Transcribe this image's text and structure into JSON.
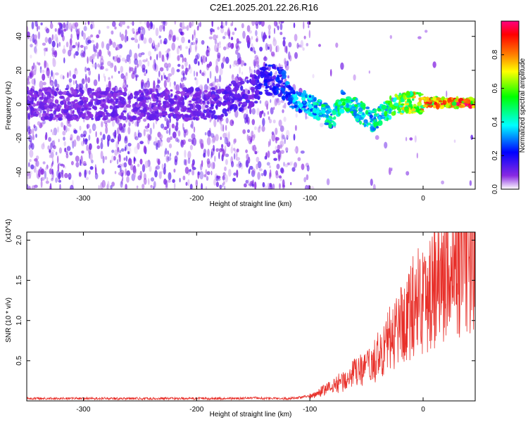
{
  "figure": {
    "title": "C2E1.2025.201.22.26.R16"
  },
  "chart_data": [
    {
      "type": "heatmap",
      "xlabel": "Height of straight line (km)",
      "ylabel": "Frequency (Hz)",
      "xlim": [
        -350,
        46
      ],
      "ylim": [
        -50,
        49
      ],
      "x_ticks": [
        "-300",
        "-200",
        "-100",
        "0"
      ],
      "x_tick_values": [
        -300,
        -200,
        -100,
        0
      ],
      "y_ticks": [
        "-40",
        "-20",
        "0",
        "20",
        "40"
      ],
      "y_tick_values": [
        -40,
        -20,
        0,
        20,
        40
      ],
      "colorbar": {
        "label": "Normalized spectral amplitude",
        "range": [
          0,
          1
        ],
        "ticks": [
          "0.0",
          "0.2",
          "0.4",
          "0.6",
          "0.8"
        ],
        "tick_values": [
          0,
          0.2,
          0.4,
          0.6,
          0.8
        ],
        "colors": [
          "#ffffff",
          "#8a2be2",
          "#0000ff",
          "#00ffff",
          "#00ff00",
          "#ffff00",
          "#ff8000",
          "#ff0000",
          "#ff0080"
        ]
      },
      "ridge": [
        {
          "x": -350,
          "freq": 0,
          "amp": 0.12
        },
        {
          "x": -300,
          "freq": 0,
          "amp": 0.12
        },
        {
          "x": -250,
          "freq": 0,
          "amp": 0.12
        },
        {
          "x": -200,
          "freq": 0,
          "amp": 0.13
        },
        {
          "x": -180,
          "freq": 1,
          "amp": 0.15
        },
        {
          "x": -150,
          "freq": 8,
          "amp": 0.15
        },
        {
          "x": -140,
          "freq": 15,
          "amp": 0.22
        },
        {
          "x": -125,
          "freq": 13,
          "amp": 0.25
        },
        {
          "x": -115,
          "freq": 3,
          "amp": 0.35
        },
        {
          "x": -100,
          "freq": 0,
          "amp": 0.4
        },
        {
          "x": -90,
          "freq": -4,
          "amp": 0.5
        },
        {
          "x": -80,
          "freq": -8,
          "amp": 0.45
        },
        {
          "x": -70,
          "freq": 3,
          "amp": 0.5
        },
        {
          "x": -55,
          "freq": -5,
          "amp": 0.5
        },
        {
          "x": -45,
          "freq": -10,
          "amp": 0.45
        },
        {
          "x": -35,
          "freq": -5,
          "amp": 0.5
        },
        {
          "x": -25,
          "freq": 0,
          "amp": 0.6
        },
        {
          "x": -10,
          "freq": 1,
          "amp": 0.75
        },
        {
          "x": 0,
          "freq": 1,
          "amp": 0.85
        },
        {
          "x": 20,
          "freq": 1,
          "amp": 0.9
        },
        {
          "x": 46,
          "freq": 1,
          "amp": 0.95
        }
      ]
    },
    {
      "type": "line",
      "xlabel": "Height of straight line (km)",
      "ylabel": "SNR (10 * v/v)",
      "y_scale_note": "(x10^4)",
      "xlim": [
        -350,
        46
      ],
      "ylim": [
        0,
        2.1
      ],
      "x_ticks": [
        "-300",
        "-200",
        "-100",
        "0"
      ],
      "x_tick_values": [
        -300,
        -200,
        -100,
        0
      ],
      "y_ticks": [
        "0.5",
        "1.0",
        "1.5",
        "2.0"
      ],
      "y_tick_values": [
        0.5,
        1.0,
        1.5,
        2.0
      ],
      "color": "#e8302a",
      "series": [
        {
          "x": [
            -350,
            -330,
            -300,
            -270,
            -250,
            -220,
            -200,
            -180,
            -160,
            -150,
            -140,
            -130,
            -120,
            -110,
            -100,
            -95,
            -90,
            -85,
            -80,
            -75,
            -70,
            -65,
            -60,
            -55,
            -50,
            -45,
            -40,
            -35,
            -30,
            -25,
            -20,
            -15,
            -10,
            -5,
            0,
            5,
            10,
            15,
            20,
            25,
            30,
            35,
            40,
            46
          ],
          "values": [
            0.03,
            0.03,
            0.03,
            0.03,
            0.03,
            0.03,
            0.03,
            0.03,
            0.03,
            0.04,
            0.03,
            0.03,
            0.03,
            0.04,
            0.06,
            0.08,
            0.12,
            0.15,
            0.18,
            0.22,
            0.25,
            0.3,
            0.35,
            0.38,
            0.4,
            0.45,
            0.55,
            0.65,
            0.75,
            0.85,
            0.95,
            1.05,
            1.15,
            1.25,
            1.3,
            1.35,
            1.45,
            1.5,
            1.55,
            1.6,
            1.7,
            1.75,
            1.8,
            1.85
          ]
        }
      ]
    }
  ]
}
